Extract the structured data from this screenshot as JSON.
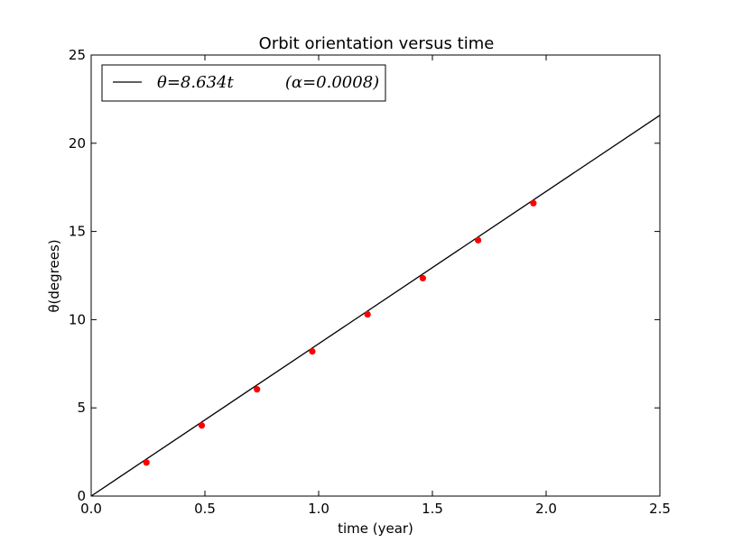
{
  "chart_data": {
    "type": "scatter",
    "title": "Orbit orientation versus time",
    "xlabel": "time (year)",
    "ylabel": "θ(degrees)",
    "xlim": [
      0,
      2.5
    ],
    "ylim": [
      0,
      25
    ],
    "x_ticks": [
      0.0,
      0.5,
      1.0,
      1.5,
      2.0,
      2.5
    ],
    "x_tick_labels": [
      "0.0",
      "0.5",
      "1.0",
      "1.5",
      "2.0",
      "2.5"
    ],
    "y_ticks": [
      0,
      5,
      10,
      15,
      20,
      25
    ],
    "y_tick_labels": [
      "0",
      "5",
      "10",
      "15",
      "20",
      "25"
    ],
    "grid": false,
    "legend_position": "top-left",
    "series": [
      {
        "name": "θ=8.634t          (α=0.0008)",
        "type": "line",
        "color": "#000000",
        "slope": 8.634,
        "x": [
          0,
          2.5
        ],
        "y": [
          0,
          21.585
        ]
      },
      {
        "type": "scatter",
        "color": "#ff0000",
        "x": [
          0.243,
          0.486,
          0.729,
          0.972,
          1.215,
          1.458,
          1.701,
          1.944
        ],
        "y": [
          1.9,
          4.0,
          6.05,
          8.2,
          10.3,
          12.35,
          14.5,
          16.6
        ]
      }
    ]
  }
}
